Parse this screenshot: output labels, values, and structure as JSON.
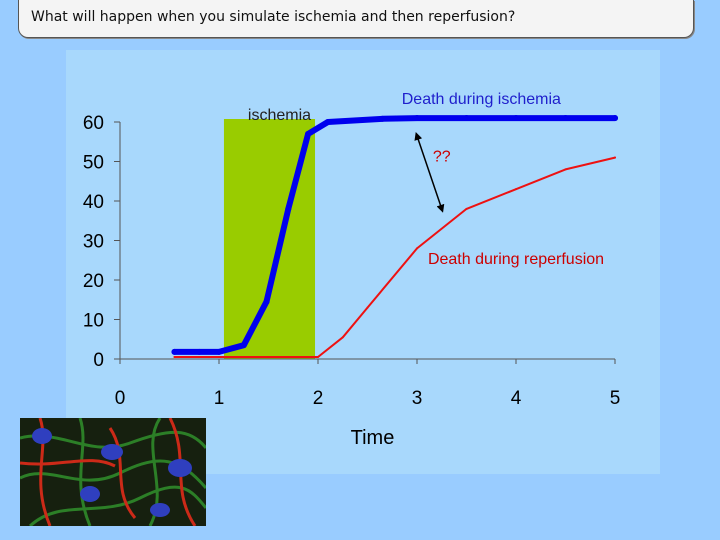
{
  "slide": {
    "title": "What will happen when you simulate ischemia and then reperfusion?"
  },
  "colors": {
    "background": "#99ccff",
    "plot_panel": "#a8d8fc",
    "ischemia_band": "#99cc00",
    "blue_series": "#0000ee",
    "red_series": "#ee1111",
    "annotation_text": "#1f1fcc"
  },
  "chart_data": {
    "type": "line",
    "title": "",
    "xlabel": "Time",
    "ylabel": "",
    "xlim": [
      0,
      5
    ],
    "ylim": [
      0,
      60
    ],
    "xticks": [
      "0",
      "1",
      "2",
      "3",
      "4",
      "5"
    ],
    "yticks": [
      "0",
      "10",
      "20",
      "30",
      "40",
      "50",
      "60"
    ],
    "grid": false,
    "legend": "none",
    "shaded_region": {
      "label": "ischemia",
      "x_start": 1.05,
      "x_end": 1.97
    },
    "series": [
      {
        "color": "#0000ee",
        "x": [
          0.55,
          0.8,
          1.0,
          1.25,
          1.48,
          1.7,
          1.9,
          2.1,
          2.65,
          3.0,
          3.5,
          4.0,
          4.5,
          5.0
        ],
        "y": [
          1.8,
          1.8,
          1.8,
          3.5,
          14.5,
          38,
          57,
          60,
          60.8,
          61,
          61,
          61,
          61,
          61
        ]
      },
      {
        "color": "#ee1111",
        "x": [
          0.55,
          1.0,
          1.5,
          2.0,
          2.25,
          2.5,
          3.0,
          3.5,
          4.0,
          4.5,
          5.0
        ],
        "y": [
          0.5,
          0.5,
          0.5,
          0.5,
          5.5,
          13,
          28,
          38,
          43,
          48,
          51
        ]
      }
    ],
    "annotations": [
      {
        "text": "Death during ischemia",
        "x": 3.65,
        "y": 64.5
      },
      {
        "text": "??",
        "x": 3.25,
        "y": 50
      },
      {
        "text": "Death during reperfusion",
        "x": 4.0,
        "y": 24
      }
    ],
    "arrow": {
      "from": [
        3.0,
        56.5
      ],
      "to": [
        3.25,
        38
      ]
    }
  }
}
